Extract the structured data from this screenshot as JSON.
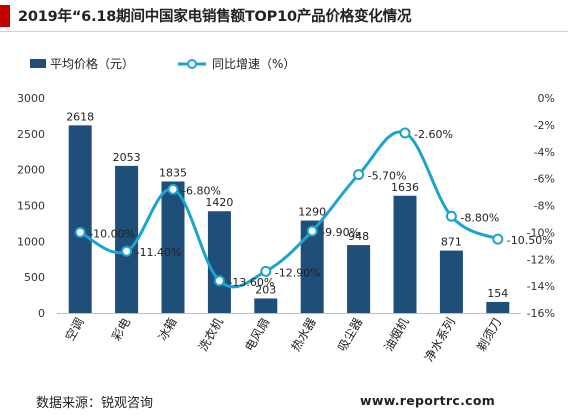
{
  "header": {
    "title": "2019年“6.18期间中国家电销售额TOP10产品价格变化情况"
  },
  "footer": {
    "source": "数据来源：锐观咨询",
    "website": "www.reportrc.com"
  },
  "colors": {
    "bar": "#1f4e79",
    "line": "#1ca3cf",
    "accent": "#c00000"
  },
  "chart_data": {
    "type": "bar",
    "categories": [
      "空调",
      "彩电",
      "冰箱",
      "洗衣机",
      "电风扇",
      "热水器",
      "吸尘器",
      "油烟机",
      "净水系列",
      "剃须刀"
    ],
    "series": [
      {
        "name": "平均价格（元）",
        "type": "bar",
        "axis": "left",
        "values": [
          2618,
          2053,
          1835,
          1420,
          203,
          1290,
          948,
          1636,
          871,
          154
        ],
        "labels": [
          "2618",
          "2053",
          "1835",
          "1420",
          "203",
          "1290",
          "948",
          "1636",
          "871",
          "154"
        ]
      },
      {
        "name": "同比增速（%）",
        "type": "line",
        "axis": "right",
        "values": [
          -10.0,
          -11.4,
          -6.8,
          -13.6,
          -12.9,
          -9.9,
          -5.7,
          -2.6,
          -8.8,
          -10.5
        ],
        "labels": [
          "-10.00%",
          "-11.40%",
          "-6.80%",
          "-13.60%",
          "-12.90%",
          "-9.90%",
          "-5.70%",
          "-2.60%",
          "-8.80%",
          "-10.50%"
        ]
      }
    ],
    "y_left": {
      "min": 0,
      "max": 3000,
      "step": 500,
      "ticks": [
        "0",
        "500",
        "1000",
        "1500",
        "2000",
        "2500",
        "3000"
      ]
    },
    "y_right": {
      "min": -16,
      "max": 0,
      "step": 2,
      "ticks": [
        "-16%",
        "-14%",
        "-12%",
        "-10%",
        "-8%",
        "-6%",
        "-4%",
        "-2%",
        "0%"
      ]
    },
    "legend_position": "top-left",
    "grid": false
  }
}
